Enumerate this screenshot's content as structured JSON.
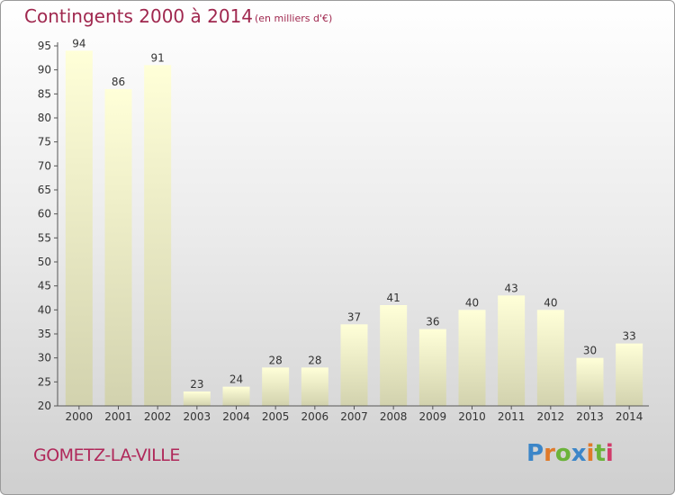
{
  "header": {
    "title": "Contingents 2000 à 2014",
    "subtitle": "(en milliers d'€)"
  },
  "footer": {
    "place": "GOMETZ-LA-VILLE",
    "logo": "Proxiti"
  },
  "colors": {
    "title": "#a0284f",
    "bar_top": "#ffffd8",
    "bar_bottom": "#d2d2ae",
    "axis": "#555555"
  },
  "chart_data": {
    "type": "bar",
    "title": "Contingents 2000 à 2014",
    "subtitle": "(en milliers d'€)",
    "categories": [
      "2000",
      "2001",
      "2002",
      "2003",
      "2004",
      "2005",
      "2006",
      "2007",
      "2008",
      "2009",
      "2010",
      "2011",
      "2012",
      "2013",
      "2014"
    ],
    "values": [
      94,
      86,
      91,
      23,
      24,
      28,
      28,
      37,
      41,
      36,
      40,
      43,
      40,
      30,
      33
    ],
    "ylim": [
      20,
      95
    ],
    "yticks": [
      20,
      25,
      30,
      35,
      40,
      45,
      50,
      55,
      60,
      65,
      70,
      75,
      80,
      85,
      90,
      95
    ],
    "grid": false,
    "xlabel": "",
    "ylabel": ""
  }
}
